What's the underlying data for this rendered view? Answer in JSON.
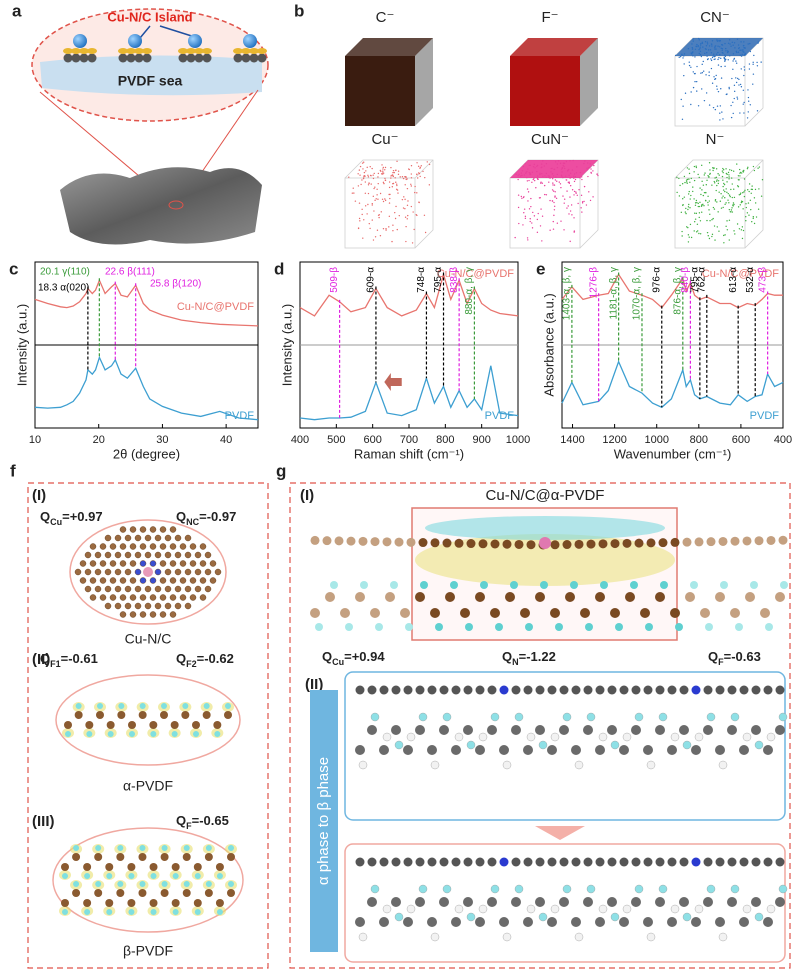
{
  "panel_a": {
    "label": "a",
    "island": "Cu-N/C Island",
    "sea": "PVDF sea"
  },
  "panel_b": {
    "label": "b",
    "ions": [
      "C⁻",
      "F⁻",
      "CN⁻",
      "Cu⁻",
      "CuN⁻",
      "N⁻"
    ]
  },
  "chart_data": [
    {
      "type": "line",
      "panel": "c",
      "xlabel": "2θ (degree)",
      "ylabel": "Intensity (a.u.)",
      "xlim": [
        10,
        45
      ],
      "xticks": [
        10,
        20,
        30,
        40
      ],
      "ylim": [
        0,
        2
      ],
      "x": [
        10,
        12,
        14,
        15,
        16,
        17,
        18,
        18.3,
        19,
        19.5,
        20.1,
        21,
        22,
        22.6,
        23.5,
        24.5,
        25.8,
        27,
        28,
        30,
        33,
        36,
        39,
        42,
        45
      ],
      "series": [
        {
          "name": "Cu-N/C@PVDF",
          "color": "#e8756f",
          "values": [
            1.55,
            1.5,
            1.46,
            1.45,
            1.47,
            1.52,
            1.62,
            1.68,
            1.62,
            1.66,
            1.78,
            1.62,
            1.7,
            1.74,
            1.6,
            1.58,
            1.72,
            1.5,
            1.42,
            1.36,
            1.3,
            1.27,
            1.25,
            1.24,
            1.23
          ]
        },
        {
          "name": "PVDF",
          "color": "#3d9fd1",
          "values": [
            0.25,
            0.24,
            0.25,
            0.28,
            0.32,
            0.42,
            0.58,
            0.7,
            0.65,
            0.7,
            0.85,
            0.7,
            0.75,
            0.82,
            0.65,
            0.6,
            0.72,
            0.5,
            0.35,
            0.26,
            0.18,
            0.14,
            0.2,
            0.12,
            0.1
          ]
        }
      ],
      "annotations": [
        {
          "x": 18.3,
          "label": "18.3 α(020)",
          "color": "#000000"
        },
        {
          "x": 20.1,
          "label": "20.1 γ(110)",
          "color": "#3a9b3a"
        },
        {
          "x": 22.6,
          "label": "22.6 β(111)",
          "color": "#e020e0"
        },
        {
          "x": 25.8,
          "label": "25.8 β(120)",
          "color": "#e020e0"
        }
      ]
    },
    {
      "type": "line",
      "panel": "d",
      "xlabel": "Raman shift (cm⁻¹)",
      "ylabel": "Intensity (a.u.)",
      "xlim": [
        400,
        1000
      ],
      "xticks": [
        400,
        500,
        600,
        700,
        800,
        900,
        1000
      ],
      "ylim": [
        0,
        2
      ],
      "x": [
        400,
        440,
        480,
        509,
        540,
        580,
        609,
        640,
        680,
        720,
        748,
        770,
        795,
        815,
        838,
        860,
        880,
        900,
        925,
        950,
        1000
      ],
      "series": [
        {
          "name": "Cu-N/C@PVDF",
          "color": "#e8756f",
          "values": [
            1.45,
            1.35,
            1.6,
            1.52,
            1.4,
            1.45,
            1.68,
            1.45,
            1.35,
            1.42,
            1.62,
            1.45,
            1.85,
            1.55,
            1.78,
            1.5,
            1.68,
            1.5,
            1.42,
            1.38,
            1.35
          ]
        },
        {
          "name": "PVDF",
          "color": "#3d9fd1",
          "values": [
            0.12,
            0.1,
            0.12,
            0.12,
            0.13,
            0.2,
            0.55,
            0.18,
            0.15,
            0.22,
            0.6,
            0.3,
            0.5,
            0.25,
            0.45,
            0.25,
            0.35,
            0.22,
            0.75,
            0.18,
            0.15
          ]
        }
      ],
      "annotations": [
        {
          "x": 509,
          "label": "509-β",
          "color": "#e020e0"
        },
        {
          "x": 609,
          "label": "609-α",
          "color": "#000000"
        },
        {
          "x": 748,
          "label": "748-α",
          "color": "#000000"
        },
        {
          "x": 795,
          "label": "795-α",
          "color": "#000000"
        },
        {
          "x": 838,
          "label": "838-β",
          "color": "#e020e0"
        },
        {
          "x": 880,
          "label": "880-α, β, γ",
          "color": "#3a9b3a"
        }
      ]
    },
    {
      "type": "line",
      "panel": "e",
      "xlabel": "Wavenumber (cm⁻¹)",
      "ylabel": "Absorbance (a.u.)",
      "xlim": [
        1450,
        400
      ],
      "xticks": [
        1400,
        1200,
        1000,
        800,
        600,
        400
      ],
      "ylim": [
        0,
        2
      ],
      "x": [
        1450,
        1403,
        1350,
        1276,
        1230,
        1181,
        1130,
        1070,
        1020,
        976,
        930,
        876,
        860,
        840,
        820,
        795,
        762,
        700,
        650,
        613,
        570,
        532,
        500,
        473,
        440,
        400
      ],
      "series": [
        {
          "name": "Cu-N/C@PVDF",
          "color": "#e8756f",
          "values": [
            1.55,
            1.7,
            1.55,
            1.6,
            1.62,
            1.85,
            1.65,
            1.6,
            1.55,
            1.45,
            1.6,
            1.8,
            1.65,
            1.75,
            1.6,
            1.55,
            1.58,
            1.5,
            1.5,
            1.45,
            1.5,
            1.48,
            1.55,
            1.62,
            1.6,
            1.6
          ]
        },
        {
          "name": "PVDF",
          "color": "#3d9fd1",
          "values": [
            0.3,
            0.55,
            0.28,
            0.32,
            0.45,
            0.8,
            0.5,
            0.42,
            0.3,
            0.25,
            0.35,
            0.7,
            0.5,
            0.58,
            0.4,
            0.35,
            0.38,
            0.3,
            0.28,
            0.4,
            0.32,
            0.38,
            0.4,
            0.65,
            0.5,
            0.55
          ]
        }
      ],
      "annotations": [
        {
          "x": 1403,
          "label": "1403-α, β, γ",
          "color": "#3a9b3a"
        },
        {
          "x": 1276,
          "label": "1276-β",
          "color": "#e020e0"
        },
        {
          "x": 1181,
          "label": "1181-α, β, γ",
          "color": "#3a9b3a"
        },
        {
          "x": 1070,
          "label": "1070-α, β, γ",
          "color": "#3a9b3a"
        },
        {
          "x": 976,
          "label": "976-α",
          "color": "#000000"
        },
        {
          "x": 876,
          "label": "876-α, β, γ",
          "color": "#3a9b3a"
        },
        {
          "x": 840,
          "label": "840-β",
          "color": "#e020e0"
        },
        {
          "x": 795,
          "label": "795-α",
          "color": "#000000"
        },
        {
          "x": 762,
          "label": "762-α",
          "color": "#000000"
        },
        {
          "x": 613,
          "label": "613-α",
          "color": "#000000"
        },
        {
          "x": 532,
          "label": "532-α",
          "color": "#000000"
        },
        {
          "x": 473,
          "label": "473-β",
          "color": "#e020e0"
        }
      ]
    }
  ],
  "panel_f": {
    "label": "f",
    "parts": [
      {
        "tag": "(I)",
        "name": "Cu-N/C",
        "charges": [
          {
            "q": "Q",
            "sub": "Cu",
            "rest": "=+0.97"
          },
          {
            "q": "Q",
            "sub": "NC",
            "rest": "=-0.97"
          }
        ]
      },
      {
        "tag": "(II)",
        "name": "α-PVDF",
        "charges": [
          {
            "q": "Q",
            "sub": "F1",
            "rest": "=-0.61"
          },
          {
            "q": "Q",
            "sub": "F2",
            "rest": "=-0.62"
          }
        ]
      },
      {
        "tag": "(III)",
        "name": "β-PVDF",
        "charges": [
          {
            "q": "Q",
            "sub": "F",
            "rest": "=-0.65"
          }
        ]
      }
    ]
  },
  "panel_g": {
    "label": "g",
    "parts": [
      {
        "tag": "(I)",
        "title": "Cu-N/C@α-PVDF",
        "charges": [
          {
            "q": "Q",
            "sub": "Cu",
            "rest": "=+0.94"
          },
          {
            "q": "Q",
            "sub": "N",
            "rest": "=-1.22"
          },
          {
            "q": "Q",
            "sub": "F",
            "rest": "=-0.63"
          }
        ]
      },
      {
        "tag": "(II)",
        "transition": "α phase to β phase"
      }
    ]
  }
}
